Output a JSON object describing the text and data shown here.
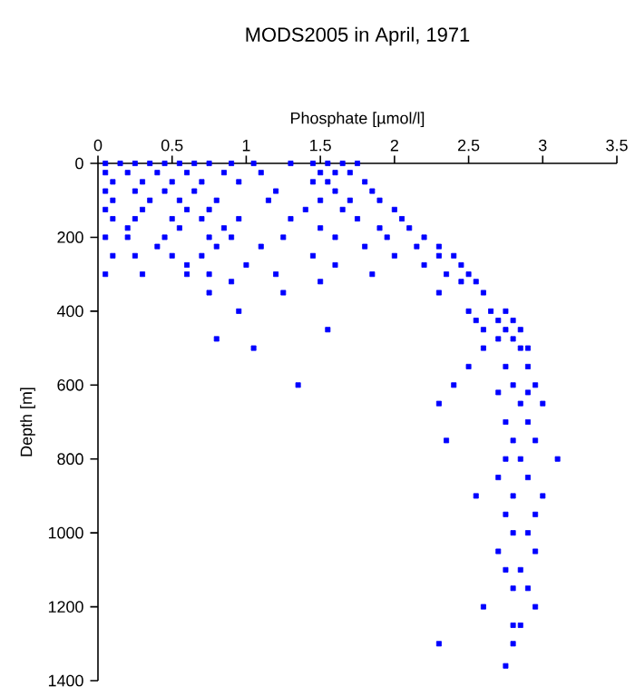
{
  "chart_data": {
    "type": "scatter",
    "title": "MODS2005 in April, 1971",
    "xlabel": "Phosphate [µmol/l]",
    "ylabel": "Depth [m]",
    "xlim": [
      0,
      3.5
    ],
    "xticks": [
      0,
      0.5,
      1,
      1.5,
      2,
      2.5,
      3,
      3.5
    ],
    "ylim": [
      1400,
      0
    ],
    "yticks": [
      0,
      200,
      400,
      600,
      800,
      1000,
      1200,
      1400
    ],
    "grid": false,
    "marker": "square",
    "series": [
      {
        "color": "#0000ff",
        "x": [
          0.05,
          0.15,
          0.25,
          0.35,
          0.45,
          0.55,
          0.65,
          0.75,
          0.9,
          1.05,
          1.3,
          1.45,
          1.55,
          1.65,
          1.75,
          0.05,
          0.2,
          0.4,
          0.6,
          0.85,
          1.1,
          1.5,
          1.6,
          1.7,
          0.1,
          0.3,
          0.5,
          0.7,
          0.95,
          1.45,
          1.55,
          1.8,
          0.05,
          0.25,
          0.45,
          0.65,
          1.2,
          1.6,
          1.85,
          0.1,
          0.35,
          0.55,
          0.8,
          1.15,
          1.5,
          1.7,
          1.9,
          0.05,
          0.3,
          0.6,
          0.75,
          1.4,
          1.65,
          2.0,
          0.1,
          0.25,
          0.5,
          0.7,
          0.95,
          1.3,
          1.75,
          2.05,
          0.2,
          0.55,
          0.85,
          1.5,
          1.9,
          2.1,
          0.05,
          0.2,
          0.45,
          0.75,
          0.9,
          1.25,
          1.6,
          1.95,
          2.2,
          0.4,
          0.8,
          1.1,
          1.8,
          2.15,
          2.3,
          0.1,
          0.25,
          0.5,
          0.7,
          1.45,
          2.0,
          2.3,
          2.4,
          0.6,
          1.0,
          1.6,
          2.2,
          2.45,
          0.05,
          0.3,
          0.6,
          0.75,
          1.2,
          1.85,
          2.35,
          2.5,
          0.9,
          1.5,
          2.45,
          2.55,
          0.75,
          1.25,
          2.3,
          2.6,
          0.95,
          2.5,
          2.65,
          2.75,
          2.55,
          2.7,
          2.8,
          1.55,
          2.6,
          2.75,
          2.85,
          0.8,
          2.7,
          2.8,
          1.05,
          2.6,
          2.85,
          2.9,
          2.5,
          2.75,
          2.9,
          1.35,
          2.4,
          2.8,
          2.95,
          2.7,
          2.9,
          2.3,
          2.85,
          3.0,
          2.75,
          2.9,
          2.35,
          2.8,
          2.95,
          2.85,
          3.1,
          2.75,
          2.7,
          2.9,
          2.55,
          2.8,
          3.0,
          2.75,
          2.95,
          2.8,
          2.9,
          2.7,
          2.95,
          2.85,
          2.75,
          2.9,
          2.8,
          2.6,
          2.95,
          2.85,
          2.8,
          2.3,
          2.8,
          2.75
        ],
        "values": [
          0,
          0,
          0,
          0,
          0,
          0,
          0,
          0,
          0,
          0,
          0,
          0,
          0,
          0,
          0,
          25,
          25,
          25,
          25,
          25,
          25,
          25,
          25,
          25,
          50,
          50,
          50,
          50,
          50,
          50,
          50,
          50,
          75,
          75,
          75,
          75,
          75,
          75,
          75,
          100,
          100,
          100,
          100,
          100,
          100,
          100,
          100,
          125,
          125,
          125,
          125,
          125,
          125,
          125,
          150,
          150,
          150,
          150,
          150,
          150,
          150,
          150,
          175,
          175,
          175,
          175,
          175,
          175,
          200,
          200,
          200,
          200,
          200,
          200,
          200,
          200,
          200,
          225,
          225,
          225,
          225,
          225,
          225,
          250,
          250,
          250,
          250,
          250,
          250,
          250,
          250,
          275,
          275,
          275,
          275,
          275,
          300,
          300,
          300,
          300,
          300,
          300,
          300,
          300,
          320,
          320,
          320,
          320,
          350,
          350,
          350,
          350,
          400,
          400,
          400,
          400,
          425,
          425,
          425,
          450,
          450,
          450,
          450,
          475,
          475,
          475,
          500,
          500,
          500,
          500,
          550,
          550,
          550,
          600,
          600,
          600,
          600,
          620,
          620,
          650,
          650,
          650,
          700,
          700,
          750,
          750,
          750,
          800,
          800,
          800,
          850,
          850,
          900,
          900,
          900,
          950,
          950,
          1000,
          1000,
          1050,
          1050,
          1100,
          1100,
          1150,
          1150,
          1200,
          1200,
          1250,
          1250,
          1300,
          1300,
          1360
        ]
      }
    ]
  }
}
